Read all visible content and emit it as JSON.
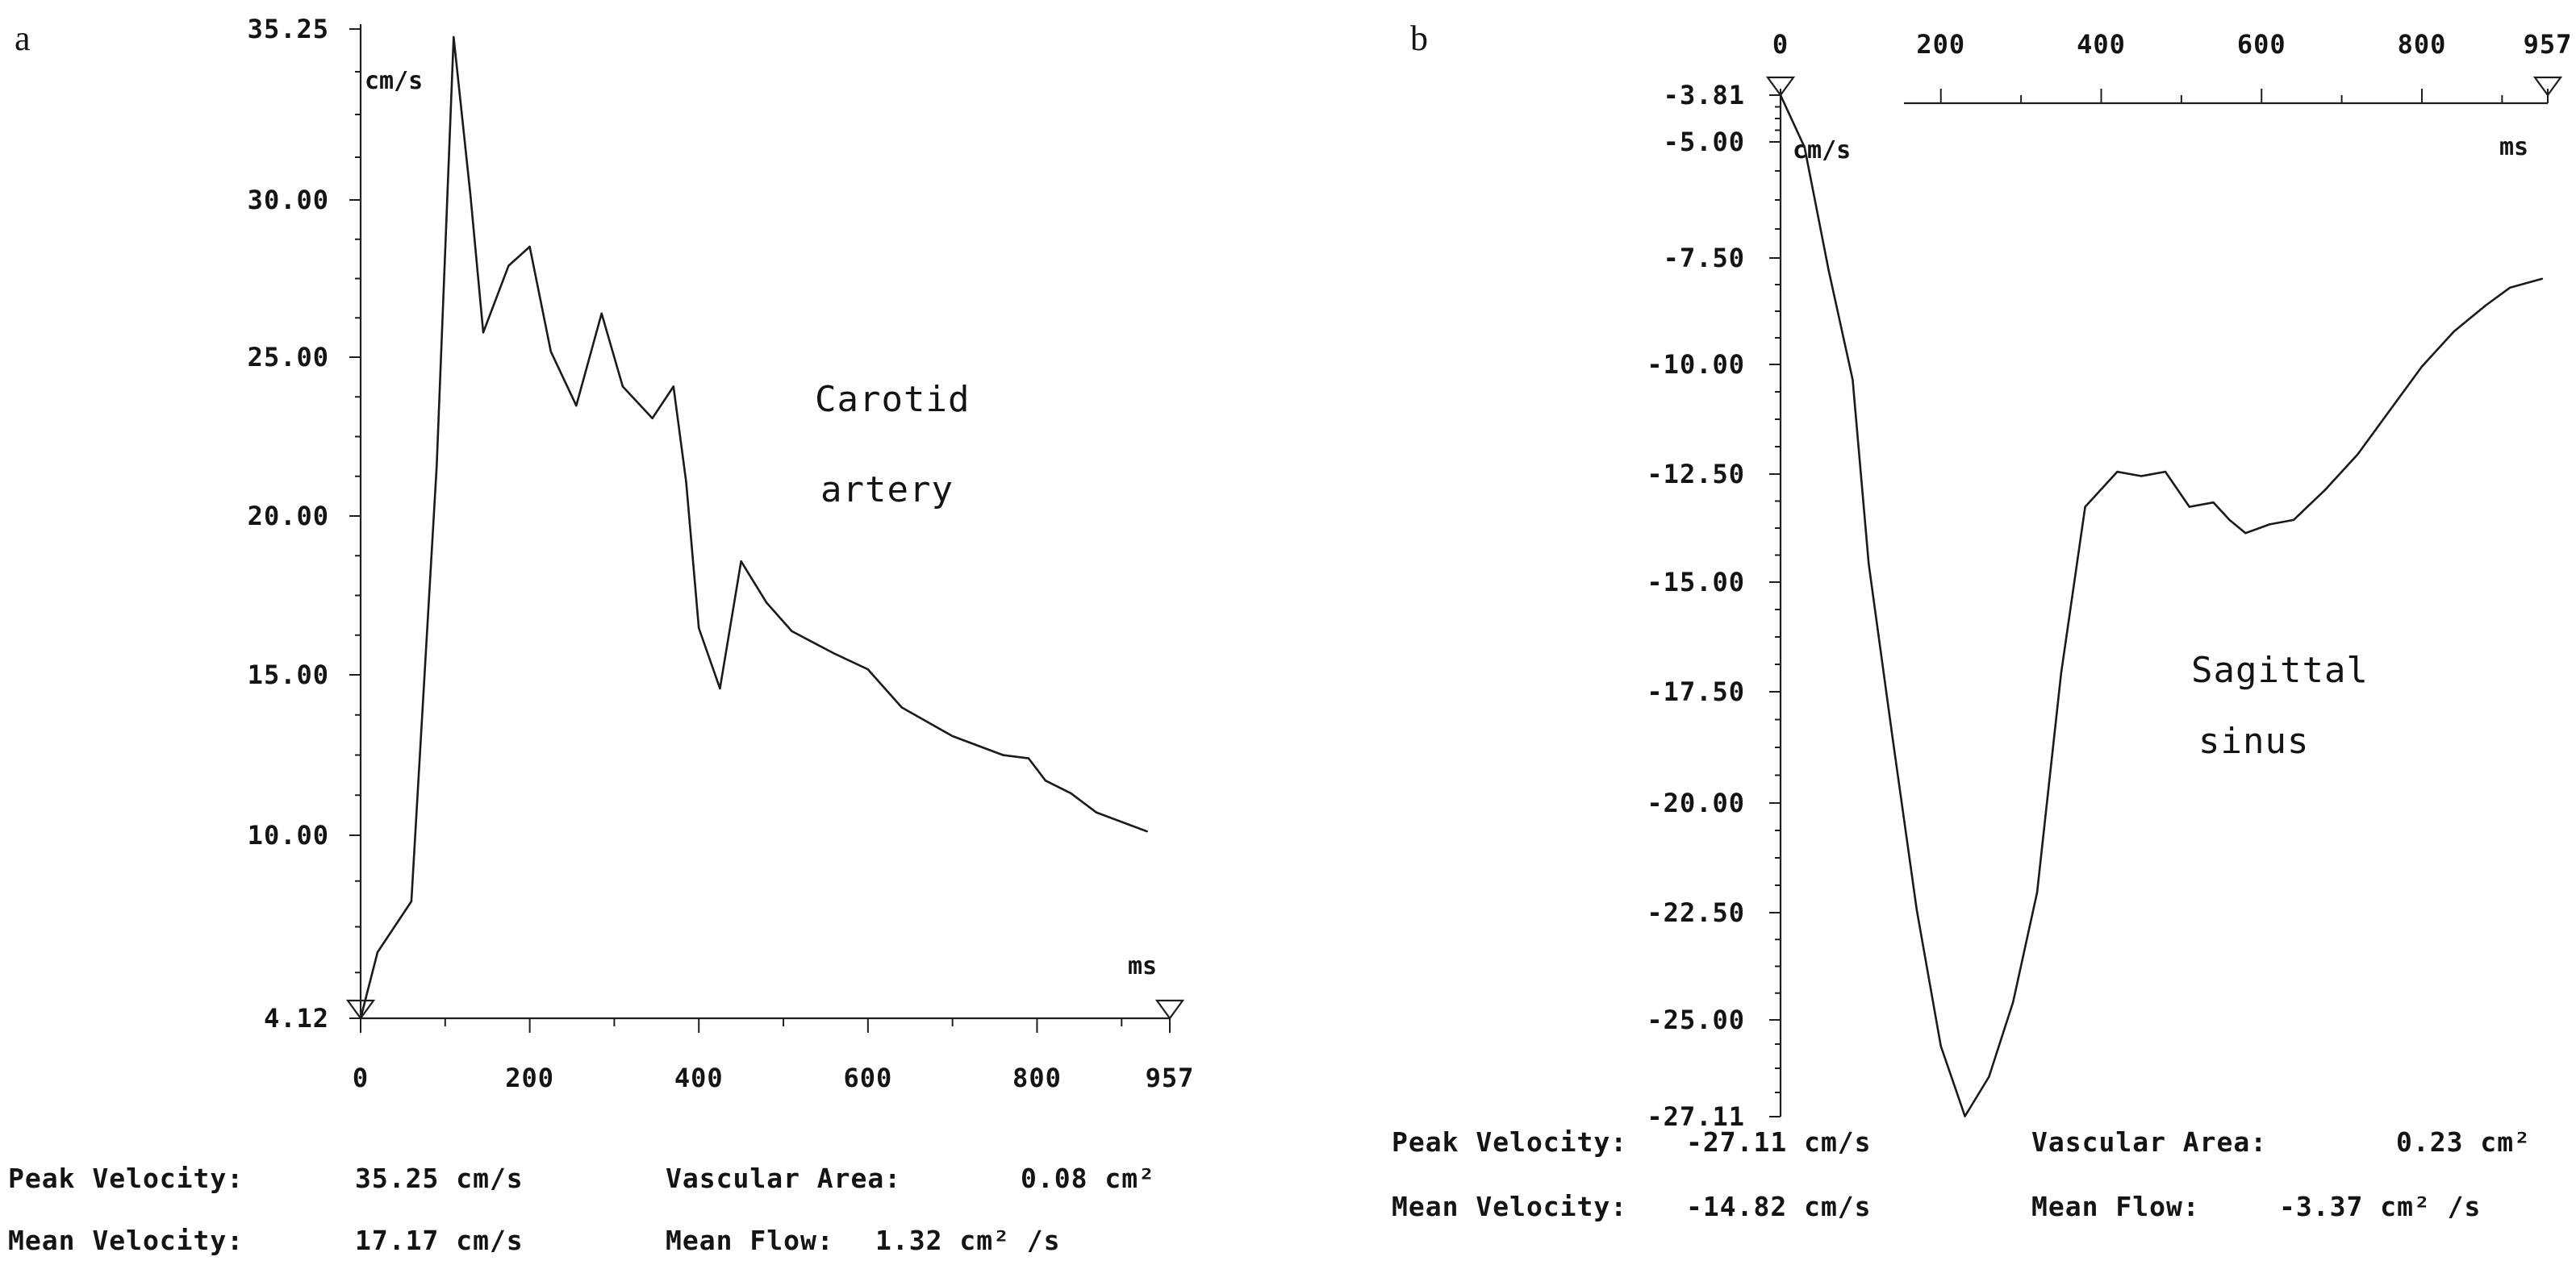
{
  "chart_data": [
    {
      "panel_label": "a",
      "type": "line",
      "annotation": [
        "Carotid",
        "artery"
      ],
      "xlabel": "ms",
      "ylabel": "cm/s",
      "xlim": [
        0,
        957
      ],
      "ylim": [
        4.12,
        35.25
      ],
      "xticks": [
        "0",
        "200",
        "400",
        "600",
        "800",
        "957"
      ],
      "yticks": [
        "35.25",
        "30.00",
        "25.00",
        "20.00",
        "15.00",
        "10.00",
        "4.12"
      ],
      "series": [
        {
          "x": [
            0,
            20,
            60,
            90,
            110,
            130,
            145,
            175,
            200,
            225,
            255,
            285,
            310,
            345,
            370,
            385,
            400,
            425,
            450,
            480,
            510,
            560,
            600,
            640,
            700,
            760,
            790,
            810,
            840,
            870,
            930
          ],
          "y": [
            4.12,
            6.2,
            7.8,
            21.5,
            35.0,
            30.0,
            25.7,
            27.8,
            28.4,
            25.1,
            23.4,
            26.3,
            24.0,
            23.0,
            24.0,
            21.0,
            16.4,
            14.5,
            18.5,
            17.2,
            16.3,
            15.6,
            15.1,
            13.9,
            13.0,
            12.4,
            12.3,
            11.6,
            11.2,
            10.6,
            10.0
          ]
        }
      ],
      "stats": {
        "peak_velocity_label": "Peak Velocity:",
        "peak_velocity_value": "35.25 cm/s",
        "mean_velocity_label": "Mean Velocity:",
        "mean_velocity_value": "17.17 cm/s",
        "vascular_area_label": "Vascular Area:",
        "vascular_area_value": "0.08 cm²",
        "mean_flow_label": "Mean Flow:",
        "mean_flow_value": "1.32 cm² /s"
      }
    },
    {
      "panel_label": "b",
      "type": "line",
      "annotation": [
        "Sagittal",
        "sinus"
      ],
      "xlabel": "ms",
      "ylabel": "cm/s",
      "xlim": [
        0,
        957
      ],
      "ylim": [
        -27.11,
        -3.81
      ],
      "xticks": [
        "0",
        "200",
        "400",
        "600",
        "800",
        "957"
      ],
      "yticks": [
        "-3.81",
        "-5.00",
        "-7.50",
        "-10.00",
        "-12.50",
        "-15.00",
        "-17.50",
        "-20.00",
        "-22.50",
        "-25.00",
        "-27.11"
      ],
      "series": [
        {
          "x": [
            0,
            30,
            60,
            90,
            110,
            140,
            170,
            200,
            230,
            260,
            290,
            320,
            350,
            380,
            420,
            450,
            480,
            510,
            540,
            560,
            580,
            610,
            640,
            680,
            720,
            760,
            800,
            840,
            880,
            910,
            950
          ],
          "y": [
            -3.81,
            -5.0,
            -7.8,
            -10.3,
            -14.5,
            -18.5,
            -22.4,
            -25.5,
            -27.1,
            -26.2,
            -24.5,
            -22.0,
            -17.0,
            -13.2,
            -12.4,
            -12.5,
            -12.4,
            -13.2,
            -13.1,
            -13.5,
            -13.8,
            -13.6,
            -13.5,
            -12.8,
            -12.0,
            -11.0,
            -10.0,
            -9.2,
            -8.6,
            -8.2,
            -8.0
          ]
        }
      ],
      "stats": {
        "peak_velocity_label": "Peak Velocity:",
        "peak_velocity_value": "-27.11 cm/s",
        "mean_velocity_label": "Mean Velocity:",
        "mean_velocity_value": "-14.82 cm/s",
        "vascular_area_label": "Vascular Area:",
        "vascular_area_value": "0.23 cm²",
        "mean_flow_label": "Mean Flow:",
        "mean_flow_value": "-3.37 cm² /s"
      }
    }
  ]
}
